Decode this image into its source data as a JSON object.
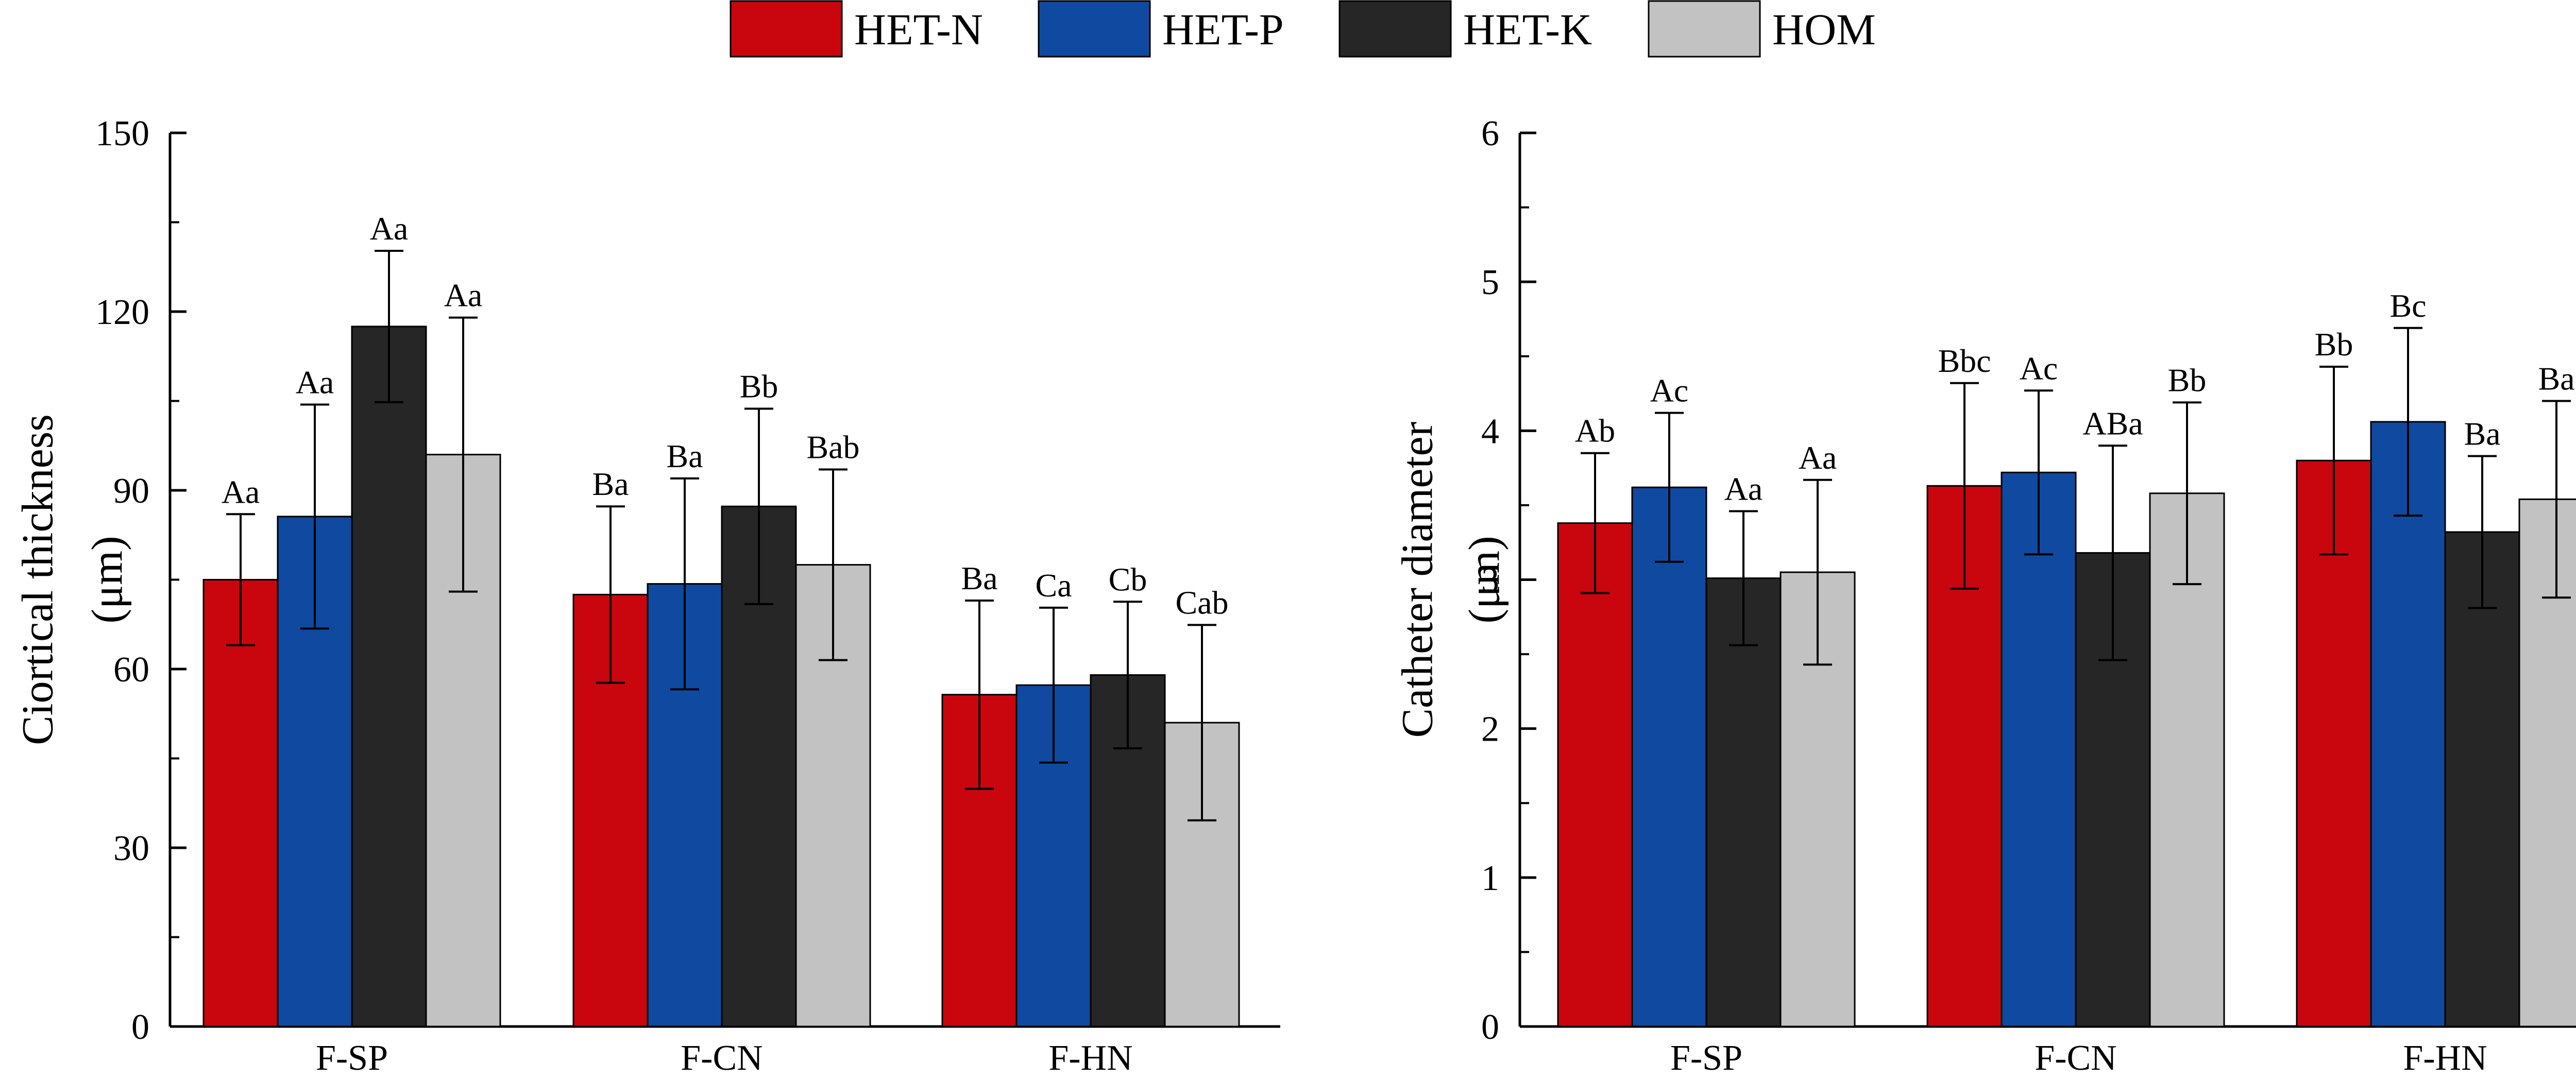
{
  "legend": [
    {
      "name": "HET-N",
      "color": "#c9060d"
    },
    {
      "name": "HET-P",
      "color": "#0f4aa0"
    },
    {
      "name": "HET-K",
      "color": "#262626"
    },
    {
      "name": "HOM",
      "color": "#c2c2c2"
    }
  ],
  "chart_data": [
    {
      "type": "bar",
      "title": "",
      "xlabel": "",
      "ylabel": "Ciortical thickness",
      "ylabel_unit": "(μm)",
      "ylim": [
        0,
        150
      ],
      "yticks": [
        0,
        30,
        60,
        90,
        120,
        150
      ],
      "categories": [
        "F-SP",
        "F-CN",
        "F-HN"
      ],
      "series": [
        {
          "name": "HET-N",
          "values": [
            75,
            72.5,
            55.7
          ],
          "errors": [
            11,
            14.8,
            15.8
          ],
          "labels": [
            "Aa",
            "Ba",
            "Ba"
          ]
        },
        {
          "name": "HET-P",
          "values": [
            85.6,
            74.3,
            57.3
          ],
          "errors": [
            18.8,
            17.7,
            13
          ],
          "labels": [
            "Aa",
            "Ba",
            "Ca"
          ]
        },
        {
          "name": "HET-K",
          "values": [
            117.5,
            87.3,
            59
          ],
          "errors": [
            12.7,
            16.4,
            12.3
          ],
          "labels": [
            "Aa",
            "Bb",
            "Cb"
          ]
        },
        {
          "name": "HOM",
          "values": [
            96,
            77.5,
            51
          ],
          "errors": [
            23,
            16,
            16.4
          ],
          "labels": [
            "Aa",
            "Bab",
            "Cab"
          ]
        }
      ]
    },
    {
      "type": "bar",
      "title": "",
      "xlabel": "",
      "ylabel": "Catheter diameter",
      "ylabel_unit": "(μm)",
      "ylim": [
        0,
        6
      ],
      "yticks": [
        0,
        1,
        2,
        3,
        4,
        5,
        6
      ],
      "categories": [
        "F-SP",
        "F-CN",
        "F-HN"
      ],
      "series": [
        {
          "name": "HET-N",
          "values": [
            3.38,
            3.63,
            3.8
          ],
          "errors": [
            0.47,
            0.69,
            0.63
          ],
          "labels": [
            "Ab",
            "Bbc",
            "Bb"
          ]
        },
        {
          "name": "HET-P",
          "values": [
            3.62,
            3.72,
            4.06
          ],
          "errors": [
            0.5,
            0.55,
            0.63
          ],
          "labels": [
            "Ac",
            "Ac",
            "Bc"
          ]
        },
        {
          "name": "HET-K",
          "values": [
            3.01,
            3.18,
            3.32
          ],
          "errors": [
            0.45,
            0.72,
            0.51
          ],
          "labels": [
            "Aa",
            "ABa",
            "Ba"
          ]
        },
        {
          "name": "HOM",
          "values": [
            3.05,
            3.58,
            3.54
          ],
          "errors": [
            0.62,
            0.61,
            0.66
          ],
          "labels": [
            "Aa",
            "Bb",
            "Ba"
          ]
        }
      ]
    }
  ]
}
